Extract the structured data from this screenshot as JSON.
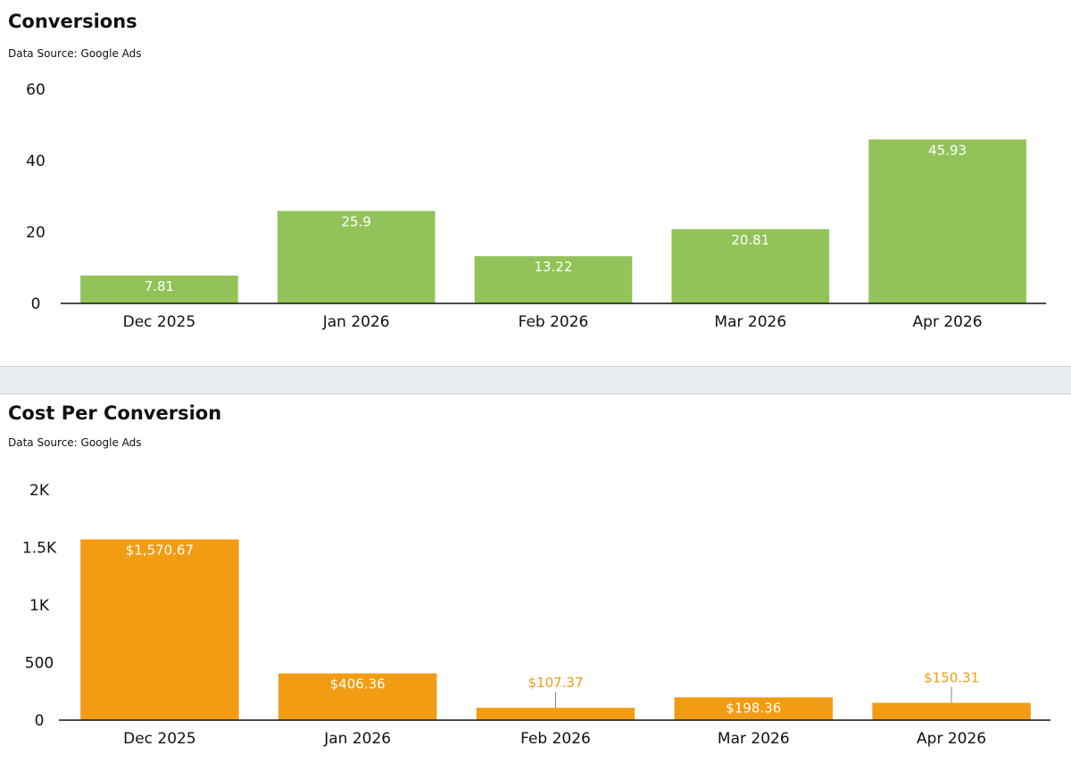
{
  "chart_data": [
    {
      "type": "bar",
      "title": "Conversions",
      "subtitle": "Data Source: Google Ads",
      "categories": [
        "Dec 2025",
        "Jan 2026",
        "Feb 2026",
        "Mar 2026",
        "Apr 2026"
      ],
      "values": [
        7.81,
        25.9,
        13.22,
        20.81,
        45.93
      ],
      "data_labels": [
        "7.81",
        "25.9",
        "13.22",
        "20.81",
        "45.93"
      ],
      "ylim": [
        0,
        60
      ],
      "yticks": [
        0,
        20,
        40,
        60
      ],
      "ytick_labels": [
        "0",
        "20",
        "40",
        "60"
      ],
      "xlabel": "",
      "ylabel": "",
      "grid": false,
      "legend": "none",
      "bar_color": "#92c35a",
      "label_color": "#ffffff"
    },
    {
      "type": "bar",
      "title": "Cost Per Conversion",
      "subtitle": "Data Source: Google Ads",
      "categories": [
        "Dec 2025",
        "Jan 2026",
        "Feb 2026",
        "Mar 2026",
        "Apr 2026"
      ],
      "values": [
        1570.67,
        406.36,
        107.37,
        198.36,
        150.31
      ],
      "data_labels": [
        "$1,570.67",
        "$406.36",
        "$107.37",
        "$198.36",
        "$150.31"
      ],
      "ylim": [
        0,
        2000
      ],
      "yticks": [
        0,
        500,
        1000,
        1500,
        2000
      ],
      "ytick_labels": [
        "0",
        "500",
        "1K",
        "1.5K",
        "2K"
      ],
      "xlabel": "",
      "ylabel": "",
      "grid": false,
      "legend": "none",
      "bar_color": "#f29c14",
      "label_color": "#ffffff",
      "outside_label_color": "#f29c14"
    }
  ]
}
